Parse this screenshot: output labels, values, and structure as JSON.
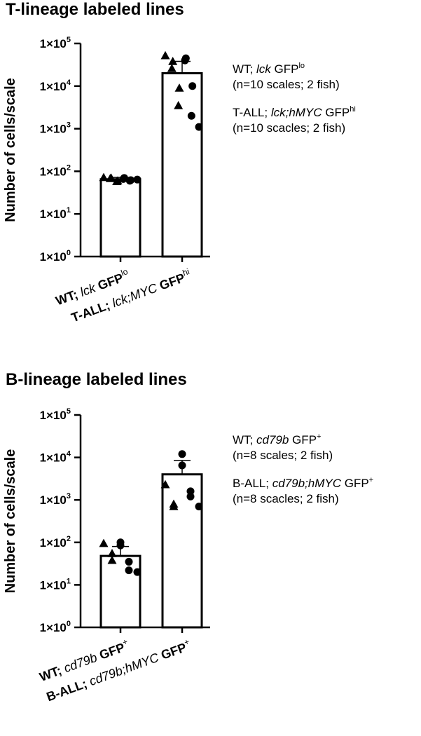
{
  "chart_data": [
    {
      "type": "bar",
      "title": "T-lineage labeled lines",
      "ylabel": "Number of cells/scale",
      "yscale": "log",
      "ylim": [
        1,
        100000
      ],
      "yticks": [
        {
          "value": 1,
          "label": "1×10",
          "exp": "0"
        },
        {
          "value": 10,
          "label": "1×10",
          "exp": "1"
        },
        {
          "value": 100,
          "label": "1×10",
          "exp": "2"
        },
        {
          "value": 1000,
          "label": "1×10",
          "exp": "3"
        },
        {
          "value": 10000,
          "label": "1×10",
          "exp": "4"
        },
        {
          "value": 100000,
          "label": "1×10",
          "exp": "5"
        }
      ],
      "categories": [
        {
          "bold": "WT;",
          "italic": " lck",
          "bold2": " GFP",
          "sup": "lo"
        },
        {
          "bold": "T-ALL;",
          "italic": " lck;MYC",
          "bold2": " GFP",
          "sup": "hi"
        }
      ],
      "values": [
        65,
        20000
      ],
      "error_upper": [
        72,
        38000
      ],
      "points": [
        [
          {
            "v": 72,
            "m": "tri"
          },
          {
            "v": 70,
            "m": "tri"
          },
          {
            "v": 68,
            "m": "tri"
          },
          {
            "v": 60,
            "m": "tri"
          },
          {
            "v": 58,
            "m": "tri"
          },
          {
            "v": 70,
            "m": "dot"
          },
          {
            "v": 66,
            "m": "dot"
          },
          {
            "v": 62,
            "m": "dot"
          },
          {
            "v": 60,
            "m": "dot"
          },
          {
            "v": 64,
            "m": "dot"
          }
        ],
        [
          {
            "v": 52000,
            "m": "tri"
          },
          {
            "v": 38000,
            "m": "tri"
          },
          {
            "v": 26000,
            "m": "tri"
          },
          {
            "v": 9000,
            "m": "tri"
          },
          {
            "v": 3500,
            "m": "tri"
          },
          {
            "v": 45000,
            "m": "dot"
          },
          {
            "v": 40000,
            "m": "dot"
          },
          {
            "v": 10000,
            "m": "dot"
          },
          {
            "v": 2000,
            "m": "dot"
          },
          {
            "v": 1100,
            "m": "dot"
          }
        ]
      ],
      "legend": [
        {
          "line1_plain": "WT; ",
          "line1_italic": "lck",
          "line1_tail": " GFP",
          "line1_sup": "lo",
          "line2": "(n=10 scales; 2 fish)"
        },
        {
          "line1_plain": "T-ALL; ",
          "line1_italic": "lck;hMYC",
          "line1_tail": " GFP",
          "line1_sup": "hi",
          "line2": "(n=10 scacles; 2 fish)"
        }
      ]
    },
    {
      "type": "bar",
      "title": "B-lineage labeled lines",
      "ylabel": "Number of cells/scale",
      "yscale": "log",
      "ylim": [
        1,
        100000
      ],
      "yticks": [
        {
          "value": 1,
          "label": "1×10",
          "exp": "0"
        },
        {
          "value": 10,
          "label": "1×10",
          "exp": "1"
        },
        {
          "value": 100,
          "label": "1×10",
          "exp": "2"
        },
        {
          "value": 1000,
          "label": "1×10",
          "exp": "3"
        },
        {
          "value": 10000,
          "label": "1×10",
          "exp": "4"
        },
        {
          "value": 100000,
          "label": "1×10",
          "exp": "5"
        }
      ],
      "categories": [
        {
          "bold": "WT;",
          "italic": " cd79b",
          "bold2": " GFP",
          "sup": "+"
        },
        {
          "bold": "B-ALL;",
          "italic": " cd79b;hMYC",
          "bold2": " GFP",
          "sup": "+"
        }
      ],
      "values": [
        48,
        4000
      ],
      "error_upper": [
        80,
        8500
      ],
      "points": [
        [
          {
            "v": 95,
            "m": "tri"
          },
          {
            "v": 55,
            "m": "tri"
          },
          {
            "v": 38,
            "m": "tri"
          },
          {
            "v": 100,
            "m": "dot"
          },
          {
            "v": 85,
            "m": "dot"
          },
          {
            "v": 35,
            "m": "dot"
          },
          {
            "v": 22,
            "m": "dot"
          },
          {
            "v": 20,
            "m": "dot"
          }
        ],
        [
          {
            "v": 2300,
            "m": "tri"
          },
          {
            "v": 800,
            "m": "tri"
          },
          {
            "v": 700,
            "m": "tri"
          },
          {
            "v": 12000,
            "m": "dot"
          },
          {
            "v": 6500,
            "m": "dot"
          },
          {
            "v": 1600,
            "m": "dot"
          },
          {
            "v": 1200,
            "m": "dot"
          },
          {
            "v": 700,
            "m": "dot"
          }
        ]
      ],
      "legend": [
        {
          "line1_plain": "WT; ",
          "line1_italic": "cd79b",
          "line1_tail": " GFP",
          "line1_sup": "+",
          "line2": "(n=8 scales; 2 fish)"
        },
        {
          "line1_plain": "B-ALL; ",
          "line1_italic": "cd79b;hMYC",
          "line1_tail": " GFP",
          "line1_sup": "+",
          "line2": "(n=8 scacles; 2 fish)"
        }
      ]
    }
  ]
}
